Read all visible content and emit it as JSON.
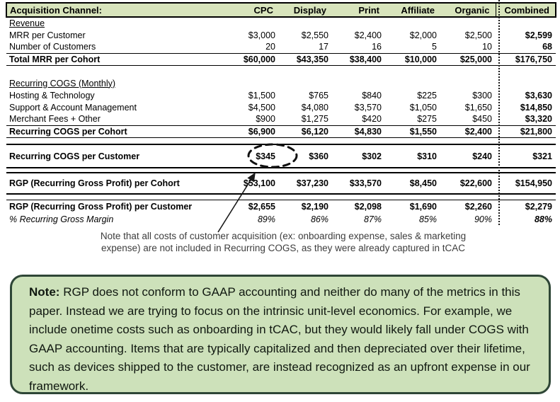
{
  "colors": {
    "header_green": "#d8e4bc",
    "box_green": "#cde1ba",
    "box_border": "#2e4636",
    "table_line": "#000000",
    "caption_text": "#3d3d3d"
  },
  "table": {
    "header": {
      "label": "Acquisition Channel:",
      "columns": [
        "CPC",
        "Display",
        "Print",
        "Affiliate",
        "Organic",
        "Combined"
      ]
    },
    "rows": [
      {
        "type": "section",
        "label": "Revenue"
      },
      {
        "type": "data",
        "label": "MRR per Customer",
        "values": [
          "$3,000",
          "$2,550",
          "$2,400",
          "$2,000",
          "$2,500",
          "$2,599"
        ]
      },
      {
        "type": "data",
        "label": "Number of Customers",
        "values": [
          "20",
          "17",
          "16",
          "5",
          "10",
          "68"
        ]
      },
      {
        "type": "total",
        "label": "Total MRR per Cohort",
        "values": [
          "$60,000",
          "$43,350",
          "$38,400",
          "$10,000",
          "$25,000",
          "$176,750"
        ]
      },
      {
        "type": "spacer",
        "h": 17
      },
      {
        "type": "section",
        "label": "Recurring COGS (Monthly)"
      },
      {
        "type": "data",
        "label": "Hosting & Technology",
        "values": [
          "$1,500",
          "$765",
          "$840",
          "$225",
          "$300",
          "$3,630"
        ]
      },
      {
        "type": "data",
        "label": "Support & Account Management",
        "values": [
          "$4,500",
          "$4,080",
          "$3,570",
          "$1,050",
          "$1,650",
          "$14,850"
        ]
      },
      {
        "type": "data",
        "label": "Merchant Fees + Other",
        "values": [
          "$900",
          "$1,275",
          "$420",
          "$275",
          "$450",
          "$3,320"
        ]
      },
      {
        "type": "total",
        "label": "Recurring COGS per Cohort",
        "values": [
          "$6,900",
          "$6,120",
          "$4,830",
          "$1,550",
          "$2,400",
          "$21,800"
        ]
      },
      {
        "type": "spacer",
        "h": 10
      },
      {
        "type": "band",
        "label": "Recurring COGS per Customer",
        "h": 33,
        "values": [
          "$345",
          "$360",
          "$302",
          "$310",
          "$240",
          "$321"
        ]
      },
      {
        "type": "spacer",
        "h": 7
      },
      {
        "type": "band",
        "label": "RGP (Recurring Gross Profit) per Cohort",
        "h": 30,
        "values": [
          "$53,100",
          "$37,230",
          "$33,570",
          "$8,450",
          "$22,600",
          "$154,950"
        ]
      },
      {
        "type": "spacer",
        "h": 8
      },
      {
        "type": "totaltop",
        "label": "RGP (Recurring Gross Profit) per Customer",
        "values": [
          "$2,655",
          "$2,190",
          "$2,098",
          "$1,690",
          "$2,260",
          "$2,279"
        ]
      },
      {
        "type": "italic",
        "label": "% Recurring Gross Margin",
        "values": [
          "89%",
          "86%",
          "87%",
          "85%",
          "90%",
          "88%"
        ]
      }
    ]
  },
  "annotations": {
    "circled_value": "$345",
    "caption": "Note that all costs of customer acquisition (ex: onboarding expense, sales & marketing\nexpense) are not included in Recurring COGS, as they were already captured in tCAC"
  },
  "note_box": {
    "label": "Note:",
    "text": "RGP does not conform to GAAP accounting and neither do many of the metrics in this paper. Instead we are trying to focus on the intrinsic unit-level economics. For example, we include onetime costs such as onboarding in tCAC, but they would likely fall under COGS with GAAP accounting. Items that are typically capitalized and then depreciated over their lifetime, such as devices shipped to the customer, are instead recognized as an upfront expense in our framework."
  }
}
